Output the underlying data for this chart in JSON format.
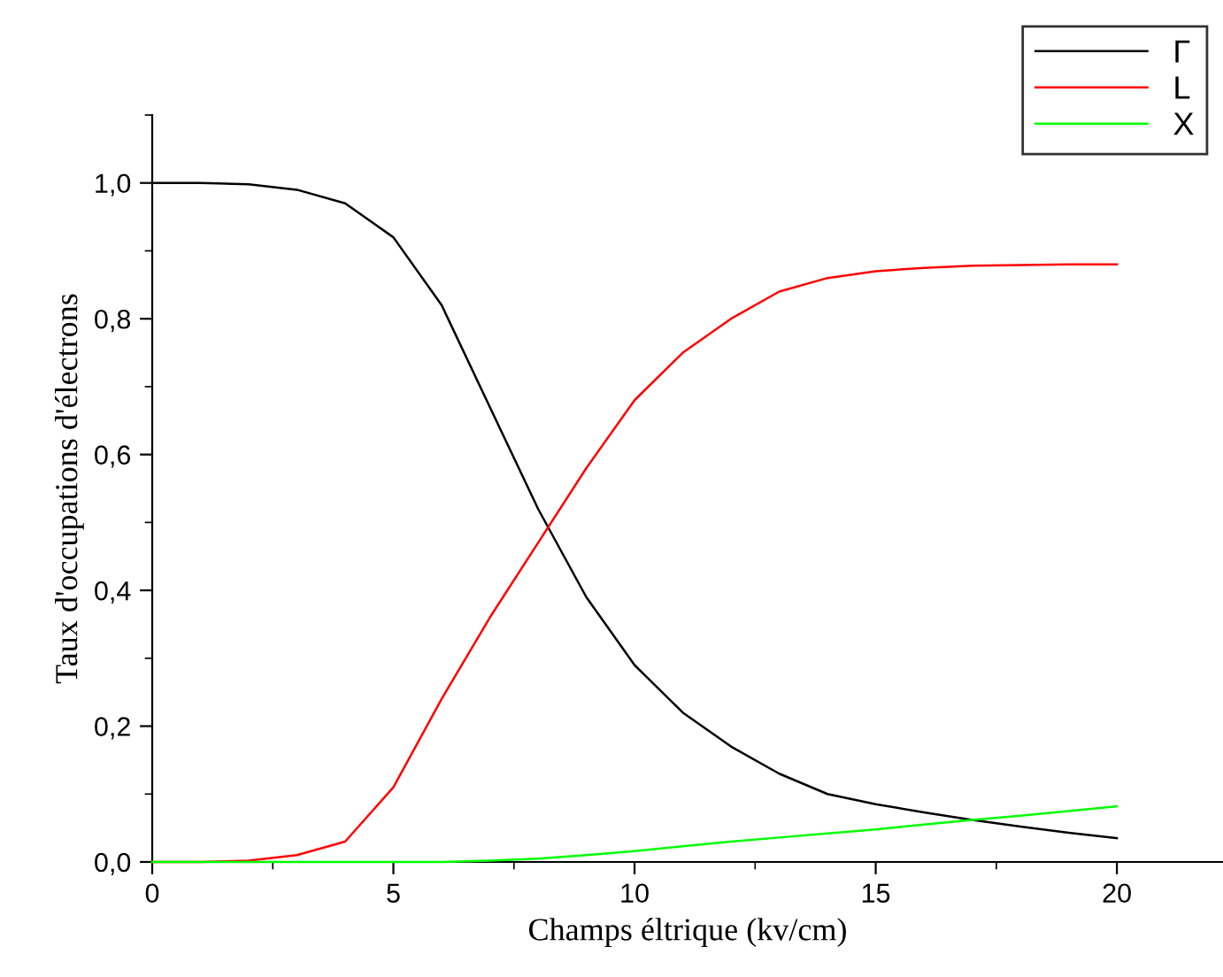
{
  "chart_data": {
    "type": "line",
    "xlabel": "Champs éltrique (kv/cm)",
    "ylabel": "Taux d'occupations d'électrons",
    "xlim": [
      0,
      22.2
    ],
    "ylim": [
      0,
      1.1
    ],
    "xticks": [
      0,
      5,
      10,
      15,
      20
    ],
    "yticks": [
      {
        "value": 0,
        "label": "0,0"
      },
      {
        "value": 0.2,
        "label": "0,2"
      },
      {
        "value": 0.4,
        "label": "0,4"
      },
      {
        "value": 0.6,
        "label": "0,6"
      },
      {
        "value": 0.8,
        "label": "0,8"
      },
      {
        "value": 1.0,
        "label": "1,0"
      }
    ],
    "grid": false,
    "legend": "top right",
    "marker": "none",
    "line_style": "solid",
    "x": [
      0,
      1,
      2,
      3,
      4,
      5,
      6,
      7,
      8,
      9,
      10,
      11,
      12,
      13,
      14,
      15,
      16,
      17,
      18,
      19,
      20
    ],
    "series": [
      {
        "name": "Γ",
        "color": "#000000",
        "values": [
          1.0,
          1.0,
          0.998,
          0.99,
          0.97,
          0.92,
          0.82,
          0.67,
          0.52,
          0.39,
          0.29,
          0.22,
          0.17,
          0.13,
          0.1,
          0.085,
          0.073,
          0.062,
          0.052,
          0.043,
          0.035
        ]
      },
      {
        "name": "L",
        "color": "#ff0000",
        "values": [
          0,
          0,
          0.002,
          0.01,
          0.03,
          0.11,
          0.24,
          0.36,
          0.47,
          0.58,
          0.68,
          0.75,
          0.8,
          0.84,
          0.86,
          0.87,
          0.875,
          0.878,
          0.879,
          0.88,
          0.88
        ]
      },
      {
        "name": "X",
        "color": "#00ff00",
        "values": [
          0,
          0,
          0,
          0,
          0,
          0,
          0,
          0.002,
          0.005,
          0.01,
          0.016,
          0.023,
          0.03,
          0.036,
          0.042,
          0.048,
          0.055,
          0.062,
          0.068,
          0.075,
          0.082
        ]
      }
    ]
  }
}
